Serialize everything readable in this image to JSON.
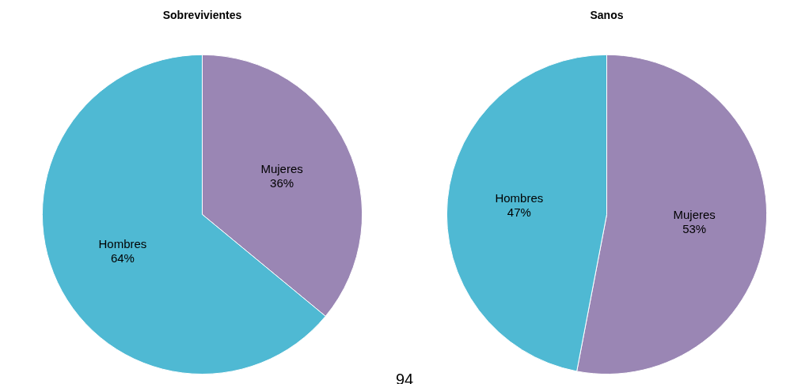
{
  "chart_data": [
    {
      "type": "pie",
      "title": "Sobrevivientes",
      "categories": [
        "Mujeres",
        "Hombres"
      ],
      "values": [
        36,
        64
      ],
      "colors": [
        "#9a86b4",
        "#4fb9d3"
      ],
      "value_labels": [
        "36%",
        "64%"
      ],
      "legend": false,
      "annotations": [
        "94"
      ]
    },
    {
      "type": "pie",
      "title": "Sanos",
      "categories": [
        "Mujeres",
        "Hombres"
      ],
      "values": [
        53,
        47
      ],
      "colors": [
        "#9a86b4",
        "#4fb9d3"
      ],
      "value_labels": [
        "53%",
        "47%"
      ],
      "legend": false
    }
  ]
}
